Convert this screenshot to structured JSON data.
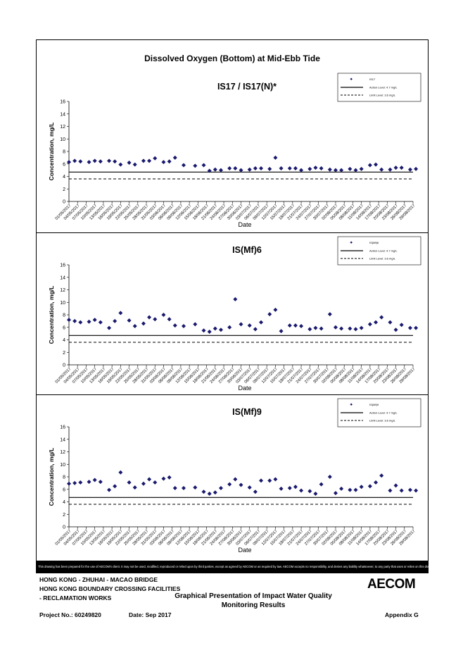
{
  "page_title": "Dissolved Oxygen (Bottom) at Mid-Ebb Tide",
  "colors": {
    "marker": "#1a1a6e",
    "line": "#000000"
  },
  "common": {
    "xlabel": "Date",
    "ylabel": "Concentration, mg/L",
    "legend_action": "Action Level: 4.7 mg/L",
    "legend_limit": "Limit Level: 3.6 mg/L",
    "action_level": 4.7,
    "limit_level": 3.6
  },
  "chart_data": [
    {
      "type": "scatter",
      "title": "IS17 / IS17(N)*",
      "xlabel": "Date",
      "ylabel": "Concentration, mg/L",
      "ylim": [
        0,
        16
      ],
      "yticks": [
        0,
        2,
        4,
        6,
        8,
        10,
        12,
        14,
        16
      ],
      "legend_position": "top-right",
      "x_tick_labels": [
        "01/05/2017",
        "04/05/2017",
        "07/05/2017",
        "10/05/2017",
        "13/05/2017",
        "16/05/2017",
        "19/05/2017",
        "22/05/2017",
        "25/05/2017",
        "28/05/2017",
        "31/05/2017",
        "03/06/2017",
        "06/06/2017",
        "09/06/2017",
        "12/06/2017",
        "15/06/2017",
        "18/06/2017",
        "21/06/2017",
        "24/06/2017",
        "27/06/2017",
        "30/06/2017",
        "03/07/2017",
        "06/07/2017",
        "09/07/2017",
        "12/07/2017",
        "15/07/2017",
        "18/07/2017",
        "21/07/2017",
        "24/07/2017",
        "27/07/2017",
        "30/07/2017",
        "02/08/2017",
        "05/08/2017",
        "08/08/2017",
        "11/08/2017",
        "14/08/2017",
        "17/08/2017",
        "20/08/2017",
        "23/08/2017",
        "26/08/2017",
        "29/08/2017"
      ],
      "series": [
        {
          "name": "IS17",
          "x": [
            "01/05/2017",
            "03/05/2017",
            "05/05/2017",
            "08/05/2017",
            "10/05/2017",
            "12/05/2017",
            "15/05/2017",
            "17/05/2017",
            "19/05/2017",
            "22/05/2017",
            "24/05/2017",
            "27/05/2017",
            "29/05/2017",
            "31/05/2017",
            "03/06/2017",
            "05/06/2017",
            "07/06/2017",
            "10/06/2017",
            "14/06/2017",
            "17/06/2017",
            "19/06/2017",
            "21/06/2017",
            "23/06/2017",
            "26/06/2017",
            "28/06/2017",
            "30/06/2017",
            "03/07/2017",
            "05/07/2017",
            "07/07/2017",
            "10/07/2017",
            "12/07/2017",
            "14/07/2017",
            "17/07/2017",
            "19/07/2017",
            "21/07/2017",
            "24/07/2017",
            "26/07/2017",
            "28/07/2017",
            "31/07/2017",
            "02/08/2017",
            "04/08/2017",
            "07/08/2017",
            "09/08/2017",
            "11/08/2017",
            "14/08/2017",
            "16/08/2017",
            "18/08/2017",
            "21/08/2017",
            "23/08/2017",
            "25/08/2017",
            "28/08/2017",
            "30/08/2017"
          ],
          "y": [
            6.3,
            6.5,
            6.4,
            6.3,
            6.5,
            6.4,
            6.5,
            6.4,
            5.9,
            6.2,
            5.9,
            6.5,
            6.5,
            6.9,
            6.3,
            6.4,
            7.0,
            5.8,
            5.7,
            5.8,
            4.9,
            5.1,
            5.0,
            5.3,
            5.3,
            5.0,
            5.1,
            5.3,
            5.3,
            5.2,
            7.0,
            5.3,
            5.3,
            5.3,
            5.0,
            5.2,
            5.4,
            5.3,
            5.1,
            5.0,
            5.0,
            5.2,
            5.0,
            5.2,
            5.8,
            5.9,
            5.1,
            5.1,
            5.4,
            5.4,
            5.1,
            5.2
          ]
        }
      ]
    },
    {
      "type": "scatter",
      "title": "IS(Mf)6",
      "xlabel": "Date",
      "ylabel": "Concentration, mg/L",
      "ylim": [
        0,
        16
      ],
      "yticks": [
        0,
        2,
        4,
        6,
        8,
        10,
        12,
        14,
        16
      ],
      "legend_position": "top-right",
      "x_tick_labels": [
        "01/05/2017",
        "04/05/2017",
        "07/05/2017",
        "10/05/2017",
        "13/05/2017",
        "16/05/2017",
        "19/05/2017",
        "22/05/2017",
        "25/05/2017",
        "28/05/2017",
        "31/05/2017",
        "03/06/2017",
        "06/06/2017",
        "09/06/2017",
        "12/06/2017",
        "15/06/2017",
        "18/06/2017",
        "21/06/2017",
        "24/06/2017",
        "27/06/2017",
        "30/06/2017",
        "03/07/2017",
        "06/07/2017",
        "09/07/2017",
        "12/07/2017",
        "15/07/2017",
        "18/07/2017",
        "21/07/2017",
        "24/07/2017",
        "27/07/2017",
        "30/07/2017",
        "02/08/2017",
        "05/08/2017",
        "08/08/2017",
        "11/08/2017",
        "14/08/2017",
        "17/08/2017",
        "20/08/2017",
        "23/08/2017",
        "26/08/2017",
        "29/08/2017"
      ],
      "series": [
        {
          "name": "IS(Mf)6",
          "x": [
            "01/05/2017",
            "03/05/2017",
            "05/05/2017",
            "08/05/2017",
            "10/05/2017",
            "12/05/2017",
            "15/05/2017",
            "17/05/2017",
            "19/05/2017",
            "22/05/2017",
            "24/05/2017",
            "27/05/2017",
            "29/05/2017",
            "31/05/2017",
            "03/06/2017",
            "05/06/2017",
            "07/06/2017",
            "10/06/2017",
            "14/06/2017",
            "17/06/2017",
            "19/06/2017",
            "21/06/2017",
            "23/06/2017",
            "26/06/2017",
            "28/06/2017",
            "30/06/2017",
            "03/07/2017",
            "05/07/2017",
            "07/07/2017",
            "10/07/2017",
            "12/07/2017",
            "14/07/2017",
            "17/07/2017",
            "19/07/2017",
            "21/07/2017",
            "24/07/2017",
            "26/07/2017",
            "28/07/2017",
            "31/07/2017",
            "02/08/2017",
            "04/08/2017",
            "07/08/2017",
            "09/08/2017",
            "11/08/2017",
            "14/08/2017",
            "16/08/2017",
            "18/08/2017",
            "21/08/2017",
            "23/08/2017",
            "25/08/2017",
            "28/08/2017",
            "30/08/2017"
          ],
          "y": [
            7.2,
            7.0,
            6.8,
            6.9,
            7.2,
            6.8,
            5.9,
            7.0,
            8.3,
            7.1,
            6.2,
            6.6,
            7.6,
            7.3,
            8.0,
            7.3,
            6.3,
            6.2,
            6.5,
            5.5,
            5.3,
            5.8,
            5.6,
            6.0,
            10.5,
            6.5,
            6.3,
            5.7,
            6.8,
            8.1,
            8.8,
            5.4,
            6.3,
            6.3,
            6.2,
            5.7,
            5.9,
            5.8,
            8.1,
            6.0,
            5.8,
            5.8,
            5.7,
            5.9,
            6.5,
            6.8,
            7.6,
            6.8,
            5.6,
            6.4,
            5.9,
            5.9
          ]
        }
      ]
    },
    {
      "type": "scatter",
      "title": "IS(Mf)9",
      "xlabel": "Date",
      "ylabel": "Concentration, mg/L",
      "ylim": [
        0,
        16
      ],
      "yticks": [
        0,
        2,
        4,
        6,
        8,
        10,
        12,
        14,
        16
      ],
      "legend_position": "top-right",
      "x_tick_labels": [
        "01/05/2017",
        "04/05/2017",
        "07/05/2017",
        "10/05/2017",
        "13/05/2017",
        "16/05/2017",
        "19/05/2017",
        "22/05/2017",
        "25/05/2017",
        "28/05/2017",
        "31/05/2017",
        "03/06/2017",
        "06/06/2017",
        "09/06/2017",
        "12/06/2017",
        "15/06/2017",
        "18/06/2017",
        "21/06/2017",
        "24/06/2017",
        "27/06/2017",
        "30/06/2017",
        "03/07/2017",
        "06/07/2017",
        "09/07/2017",
        "12/07/2017",
        "15/07/2017",
        "18/07/2017",
        "21/07/2017",
        "24/07/2017",
        "27/07/2017",
        "30/07/2017",
        "02/08/2017",
        "05/08/2017",
        "08/08/2017",
        "11/08/2017",
        "14/08/2017",
        "17/08/2017",
        "20/08/2017",
        "23/08/2017",
        "26/08/2017",
        "29/08/2017"
      ],
      "series": [
        {
          "name": "IS(Mf)9",
          "x": [
            "01/05/2017",
            "03/05/2017",
            "05/05/2017",
            "08/05/2017",
            "10/05/2017",
            "12/05/2017",
            "15/05/2017",
            "17/05/2017",
            "19/05/2017",
            "22/05/2017",
            "24/05/2017",
            "27/05/2017",
            "29/05/2017",
            "31/05/2017",
            "03/06/2017",
            "05/06/2017",
            "07/06/2017",
            "10/06/2017",
            "14/06/2017",
            "17/06/2017",
            "19/06/2017",
            "21/06/2017",
            "23/06/2017",
            "26/06/2017",
            "28/06/2017",
            "30/06/2017",
            "03/07/2017",
            "05/07/2017",
            "07/07/2017",
            "10/07/2017",
            "12/07/2017",
            "14/07/2017",
            "17/07/2017",
            "19/07/2017",
            "21/07/2017",
            "24/07/2017",
            "26/07/2017",
            "28/07/2017",
            "31/07/2017",
            "02/08/2017",
            "04/08/2017",
            "07/08/2017",
            "09/08/2017",
            "11/08/2017",
            "14/08/2017",
            "16/08/2017",
            "18/08/2017",
            "21/08/2017",
            "23/08/2017",
            "25/08/2017",
            "28/08/2017",
            "30/08/2017"
          ],
          "y": [
            6.9,
            7.0,
            7.1,
            7.2,
            7.5,
            7.2,
            5.9,
            6.5,
            8.7,
            7.1,
            6.3,
            6.9,
            7.6,
            7.1,
            7.7,
            7.9,
            6.2,
            6.2,
            6.3,
            5.6,
            5.3,
            5.5,
            6.2,
            6.8,
            7.6,
            6.7,
            6.3,
            5.6,
            7.4,
            7.4,
            7.6,
            6.1,
            6.2,
            6.4,
            5.8,
            5.7,
            5.3,
            6.8,
            8.0,
            5.4,
            6.1,
            5.9,
            5.9,
            6.4,
            6.5,
            7.1,
            8.2,
            5.8,
            6.6,
            5.8,
            5.9,
            5.8
          ]
        }
      ]
    }
  ],
  "disclaimer": "This drawing has been prepared for the use of AECOM's client. It may not be used, modified, reproduced or relied upon by third parties, except as agreed by AECOM or as required by law. AECOM accepts no responsibility, and denies any liability whatsoever, to any party that uses or relies on this drawing without AECOM's express written consent.",
  "footer": {
    "line1": "HONG KONG - ZHUHAI - MACAO BRIDGE",
    "line2": "HONG KONG BOUNDARY CROSSING FACILITIES",
    "line3": "- RECLAMATION WORKS",
    "center_title_1": "Graphical Presentation of Impact Water Quality",
    "center_title_2": "Monitoring Results",
    "project_no": "Project No.: 60249820",
    "date": "Date: Sep 2017",
    "appendix": "Appendix G",
    "logo": "AECOM"
  }
}
